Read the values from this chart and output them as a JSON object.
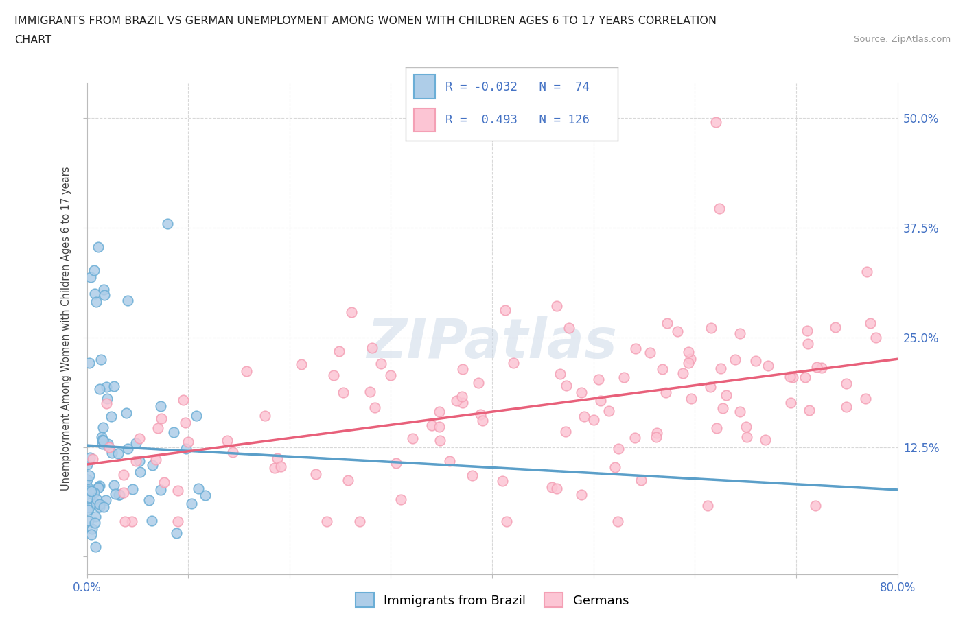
{
  "title_line1": "IMMIGRANTS FROM BRAZIL VS GERMAN UNEMPLOYMENT AMONG WOMEN WITH CHILDREN AGES 6 TO 17 YEARS CORRELATION",
  "title_line2": "CHART",
  "source_text": "Source: ZipAtlas.com",
  "ylabel": "Unemployment Among Women with Children Ages 6 to 17 years",
  "xlim": [
    0.0,
    0.8
  ],
  "ylim": [
    -0.02,
    0.54
  ],
  "ytick_positions": [
    0.0,
    0.125,
    0.25,
    0.375,
    0.5
  ],
  "ytick_labels": [
    "",
    "12.5%",
    "25.0%",
    "37.5%",
    "50.0%"
  ],
  "xtick_positions": [
    0.0,
    0.1,
    0.2,
    0.3,
    0.4,
    0.5,
    0.6,
    0.7,
    0.8
  ],
  "xtick_labels": [
    "0.0%",
    "",
    "",
    "",
    "",
    "",
    "",
    "",
    "80.0%"
  ],
  "brazil_color_edge": "#6baed6",
  "brazil_color_fill": "#aecde8",
  "german_color_edge": "#f4a0b5",
  "german_color_fill": "#fcc5d4",
  "brazil_line_color": "#5b9fc9",
  "german_line_color": "#e8607a",
  "brazil_R": -0.032,
  "brazil_N": 74,
  "german_R": 0.493,
  "german_N": 126,
  "watermark": "ZIPatlas",
  "background_color": "#ffffff",
  "grid_color": "#d8d8d8",
  "tick_label_color": "#4472c4",
  "brazil_seed": 12345,
  "german_seed": 67890
}
